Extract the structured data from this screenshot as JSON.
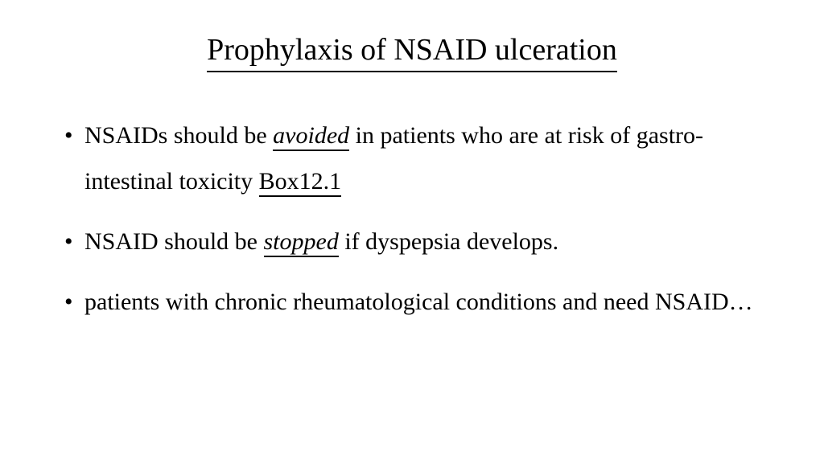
{
  "slide": {
    "title": "Prophylaxis of NSAID ulceration",
    "bullets": [
      {
        "pre": "NSAIDs should be ",
        "emph": "avoided",
        "mid": " in patients who are at risk of gastro-intestinal toxicity ",
        "box": "Box12.1",
        "post": ""
      },
      {
        "pre": "NSAID should be ",
        "emph": "stopped",
        "mid": " if dyspepsia develops.",
        "box": "",
        "post": ""
      },
      {
        "pre": "patients with chronic rheumatological conditions and need NSAID…",
        "emph": "",
        "mid": "",
        "box": "",
        "post": ""
      }
    ]
  },
  "style": {
    "background_color": "#ffffff",
    "text_color": "#000000",
    "title_fontsize": 38,
    "body_fontsize": 30,
    "font_family": "Georgia, serif",
    "underline_color": "#000000",
    "underline_width": 2
  }
}
